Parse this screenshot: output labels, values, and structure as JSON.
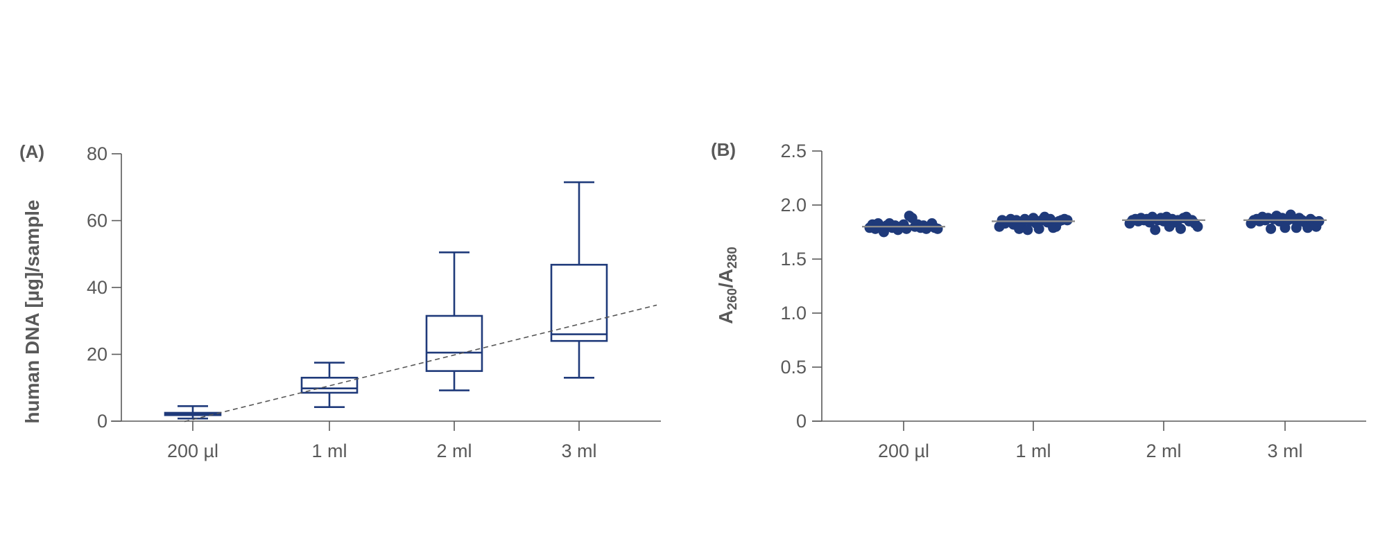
{
  "colors": {
    "mark": "#1f3a7a",
    "axis": "#595959",
    "text": "#595959",
    "median_line_b": "#8a8a8a",
    "trend": "#555555"
  },
  "chart_data": [
    {
      "type": "box",
      "panel_label": "(A)",
      "ylabel": "human  DNA [µg]/sample",
      "ylim": [
        0,
        80
      ],
      "yticks": [
        "0",
        "20",
        "40",
        "60",
        "80"
      ],
      "categories": [
        "200 µl",
        "1 ml",
        "2 ml",
        "3 ml"
      ],
      "boxes": [
        {
          "whisker_low": 0.8,
          "q1": 1.8,
          "median": 2.2,
          "q3": 2.5,
          "whisker_high": 4.5
        },
        {
          "whisker_low": 4.2,
          "q1": 8.5,
          "median": 9.8,
          "q3": 13.0,
          "whisker_high": 17.5
        },
        {
          "whisker_low": 9.2,
          "q1": 15.0,
          "median": 20.5,
          "q3": 31.5,
          "whisker_high": 50.5
        },
        {
          "whisker_low": 13.0,
          "q1": 24.0,
          "median": 26.0,
          "q3": 46.8,
          "whisker_high": 71.5
        }
      ],
      "trend_line": {
        "style": "dashed",
        "from": {
          "x": "200 µl",
          "y": 0.5
        },
        "to": {
          "x": "3 ml",
          "y": 29.0
        }
      },
      "grid": false
    },
    {
      "type": "scatter",
      "panel_label": "(B)",
      "ylabel_main": "A",
      "ylabel_sub1": "260",
      "ylabel_mid": "/A",
      "ylabel_sub2": "280",
      "ylim": [
        0,
        2.5
      ],
      "yticks": [
        "0",
        "0.5",
        "1.0",
        "1.5",
        "2.0",
        "2.5"
      ],
      "categories": [
        "200 µl",
        "1 ml",
        "2 ml",
        "3 ml"
      ],
      "medians": [
        1.8,
        1.85,
        1.86,
        1.86
      ],
      "series": [
        {
          "values": [
            1.79,
            1.82,
            1.78,
            1.83,
            1.8,
            1.75,
            1.81,
            1.83,
            1.79,
            1.81,
            1.77,
            1.8,
            1.82,
            1.78,
            1.9,
            1.88,
            1.8,
            1.82,
            1.79,
            1.81,
            1.78,
            1.8,
            1.83,
            1.79,
            1.78
          ]
        },
        {
          "values": [
            1.8,
            1.86,
            1.83,
            1.85,
            1.87,
            1.82,
            1.86,
            1.78,
            1.84,
            1.87,
            1.77,
            1.85,
            1.88,
            1.83,
            1.78,
            1.86,
            1.89,
            1.84,
            1.87,
            1.79,
            1.8,
            1.85,
            1.86,
            1.87,
            1.86
          ]
        },
        {
          "values": [
            1.83,
            1.86,
            1.87,
            1.85,
            1.88,
            1.86,
            1.87,
            1.84,
            1.89,
            1.77,
            1.86,
            1.88,
            1.85,
            1.89,
            1.8,
            1.87,
            1.84,
            1.86,
            1.78,
            1.88,
            1.89,
            1.85,
            1.86,
            1.83,
            1.8
          ]
        },
        {
          "values": [
            1.83,
            1.86,
            1.87,
            1.85,
            1.89,
            1.86,
            1.88,
            1.78,
            1.87,
            1.9,
            1.85,
            1.88,
            1.79,
            1.86,
            1.91,
            1.87,
            1.79,
            1.88,
            1.86,
            1.84,
            1.79,
            1.87,
            1.85,
            1.8,
            1.85
          ]
        }
      ],
      "grid": false
    }
  ]
}
